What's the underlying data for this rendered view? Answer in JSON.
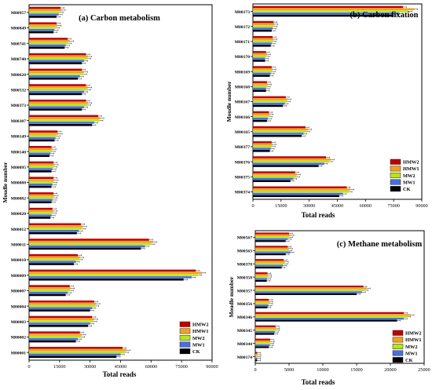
{
  "series_colors": [
    "#c00000",
    "#f0a020",
    "#b5e61d",
    "#4a6ee0",
    "#000000"
  ],
  "chart_data": [
    {
      "type": "bar",
      "orientation": "horizontal",
      "title": "(a) Carbon metabolism",
      "xlabel": "Total reads",
      "ylabel": "Moudle number",
      "xlim": [
        0,
        90000
      ],
      "xticks": [
        0,
        15000,
        30000,
        45000,
        60000,
        75000,
        90000
      ],
      "legend_position": "bottom-right",
      "categories": [
        "M00957",
        "M00849",
        "M00741",
        "M00740",
        "M00620",
        "M00532",
        "M00373",
        "M00307",
        "M00149",
        "M00140",
        "M00095",
        "M00088",
        "M00082",
        "M00020",
        "M00012",
        "M00011",
        "M00010",
        "M00009",
        "M00007",
        "M00004",
        "M00003",
        "M00002",
        "M00001"
      ],
      "series": [
        {
          "name": "HMW2",
          "values": [
            15500,
            13500,
            19000,
            28000,
            26000,
            28000,
            28000,
            34000,
            14000,
            11000,
            12000,
            12000,
            12000,
            11500,
            25500,
            59000,
            24000,
            82000,
            20000,
            32000,
            31000,
            25000,
            46000
          ]
        },
        {
          "name": "HMW1",
          "values": [
            16000,
            14000,
            20000,
            29000,
            27000,
            29000,
            29000,
            35000,
            14500,
            11500,
            12500,
            12500,
            12500,
            12000,
            26500,
            61000,
            25000,
            85000,
            20500,
            33000,
            32000,
            26000,
            48000
          ]
        },
        {
          "name": "MW2",
          "values": [
            15000,
            13000,
            19000,
            28500,
            26500,
            28500,
            28500,
            34500,
            13500,
            11000,
            12000,
            12000,
            12000,
            11500,
            26000,
            60000,
            24500,
            83000,
            20000,
            32500,
            31500,
            25500,
            47000
          ]
        },
        {
          "name": "MW1",
          "values": [
            14500,
            12500,
            18000,
            27000,
            25000,
            27000,
            27000,
            32000,
            13000,
            10500,
            11500,
            11500,
            11500,
            11000,
            24500,
            57000,
            23000,
            80000,
            19000,
            31000,
            30000,
            24000,
            45000
          ]
        },
        {
          "name": "CK",
          "values": [
            13500,
            12000,
            17500,
            26000,
            24000,
            26000,
            26000,
            31000,
            12500,
            10000,
            11000,
            11000,
            11000,
            10500,
            23500,
            55000,
            22000,
            76000,
            18000,
            30000,
            29000,
            23000,
            43000
          ]
        }
      ]
    },
    {
      "type": "bar",
      "orientation": "horizontal",
      "title": "(b) Carbon fixation",
      "xlabel": "Total reads",
      "ylabel": "Moudle number",
      "xlim": [
        0,
        90000
      ],
      "xticks": [
        0,
        15000,
        30000,
        45000,
        60000,
        75000,
        90000
      ],
      "legend_position": "bottom-right",
      "categories": [
        "M00173",
        "M00172",
        "M00171",
        "M00170",
        "M00169",
        "M00168",
        "M00167",
        "M00166",
        "M00165",
        "M00377",
        "M00376",
        "M00375",
        "M00374"
      ],
      "series": [
        {
          "name": "HMW2",
          "values": [
            80000,
            11000,
            10500,
            7000,
            10000,
            7500,
            17500,
            8500,
            28000,
            10000,
            39000,
            22500,
            50000
          ]
        },
        {
          "name": "HMW1",
          "values": [
            86000,
            11500,
            11000,
            7500,
            10500,
            8000,
            18500,
            9000,
            29500,
            10500,
            41500,
            23500,
            52000
          ]
        },
        {
          "name": "MW2",
          "values": [
            83000,
            11000,
            10500,
            7000,
            10000,
            7500,
            18000,
            8500,
            28500,
            10000,
            40500,
            23000,
            51000
          ]
        },
        {
          "name": "MW1",
          "values": [
            78000,
            10500,
            10000,
            6500,
            9500,
            7000,
            17000,
            8000,
            27000,
            9500,
            38000,
            21500,
            48000
          ]
        },
        {
          "name": "CK",
          "values": [
            75000,
            10000,
            9500,
            6500,
            9000,
            7000,
            16000,
            7500,
            26000,
            9000,
            35000,
            20000,
            46000
          ]
        }
      ]
    },
    {
      "type": "bar",
      "orientation": "horizontal",
      "title": "(c) Methane metabolism",
      "xlabel": "Total reads",
      "ylabel": "Moudle number",
      "xlim": [
        0,
        25000
      ],
      "xticks": [
        0,
        5000,
        10000,
        15000,
        20000,
        25000
      ],
      "legend_position": "bottom-right",
      "categories": [
        "M00567",
        "M00563",
        "M00378",
        "M00358",
        "M00357",
        "M00356",
        "M00346",
        "M00345",
        "M00344",
        "M00174"
      ],
      "series": [
        {
          "name": "HMW2",
          "values": [
            5000,
            4800,
            4200,
            1800,
            16000,
            2000,
            22000,
            3000,
            2200,
            300
          ]
        },
        {
          "name": "HMW1",
          "values": [
            5200,
            5000,
            4400,
            1900,
            16500,
            2100,
            23000,
            3100,
            2300,
            320
          ]
        },
        {
          "name": "MW2",
          "values": [
            5000,
            4900,
            4300,
            1850,
            16200,
            2050,
            22500,
            3050,
            2250,
            310
          ]
        },
        {
          "name": "MW1",
          "values": [
            4800,
            5200,
            4100,
            1750,
            15800,
            1950,
            22000,
            2900,
            2150,
            290
          ]
        },
        {
          "name": "CK",
          "values": [
            4500,
            4500,
            3900,
            1700,
            15000,
            1800,
            21000,
            2800,
            2000,
            280
          ]
        }
      ]
    }
  ]
}
